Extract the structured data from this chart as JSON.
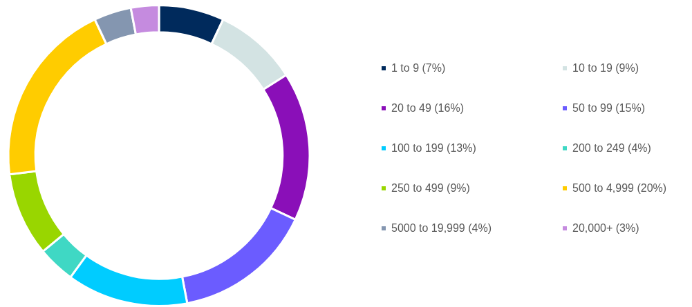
{
  "chart_data": {
    "type": "donut",
    "legend": "right",
    "categories": [
      "1 to 9 (7%)",
      "10 to 19 (9%)",
      "20 to 49 (16%)",
      "50 to 99 (15%)",
      "100 to 199 (13%)",
      "200 to 249 (4%)",
      "250 to 499 (9%)",
      "500 to 4,999 (20%)",
      "5000 to 19,999 (4%)",
      "20,000+ (3%)"
    ],
    "values": [
      7,
      9,
      16,
      15,
      13,
      4,
      9,
      20,
      4,
      3
    ],
    "colors": [
      "#002a5c",
      "#d3e3e3",
      "#8a0fb8",
      "#6b5cff",
      "#00ccff",
      "#3fd8c4",
      "#99d600",
      "#ffcc00",
      "#8496b0",
      "#c58bdf"
    ]
  }
}
